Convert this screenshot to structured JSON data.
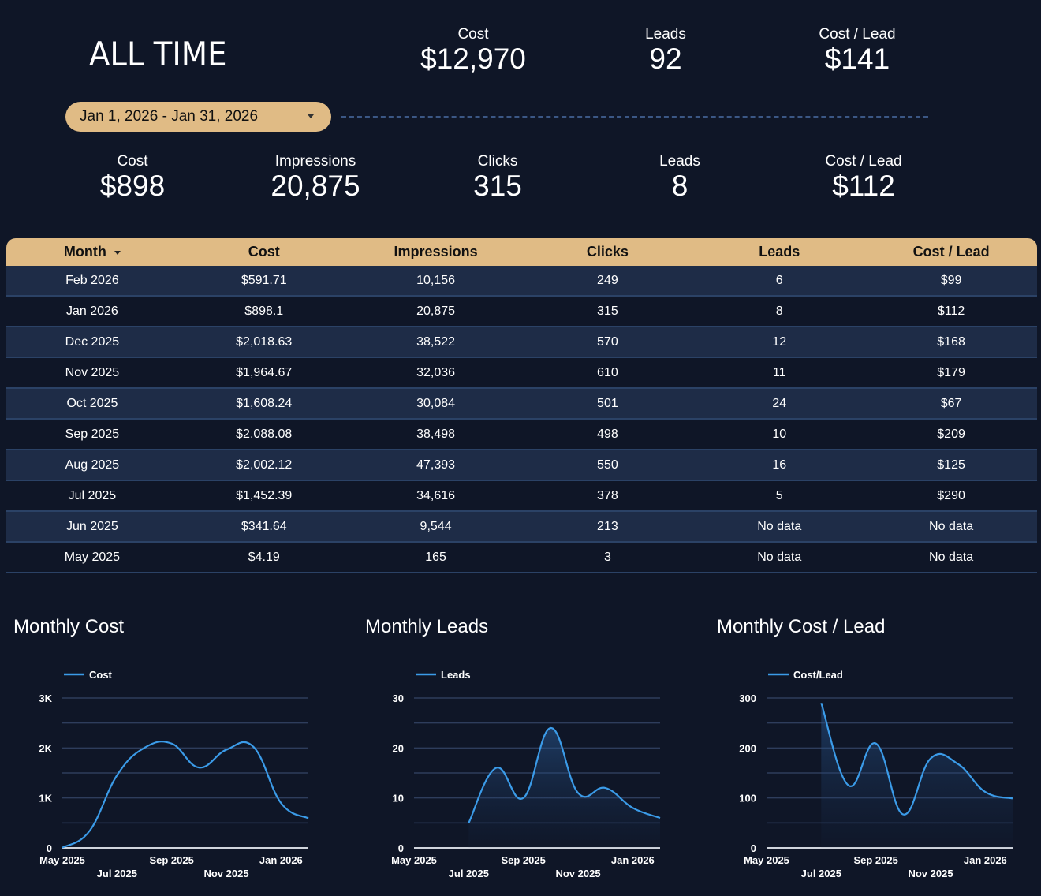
{
  "all_time": {
    "title": "ALL TIME",
    "kpis": [
      {
        "label": "Cost",
        "value": "$12,970"
      },
      {
        "label": "Leads",
        "value": "92"
      },
      {
        "label": "Cost / Lead",
        "value": "$141"
      }
    ]
  },
  "date_range": {
    "value": "Jan 1, 2026 - Jan 31, 2026"
  },
  "period": {
    "kpis": [
      {
        "label": "Cost",
        "value": "$898"
      },
      {
        "label": "Impressions",
        "value": "20,875"
      },
      {
        "label": "Clicks",
        "value": "315"
      },
      {
        "label": "Leads",
        "value": "8"
      },
      {
        "label": "Cost / Lead",
        "value": "$112"
      }
    ]
  },
  "table": {
    "columns": [
      "Month",
      "Cost",
      "Impressions",
      "Clicks",
      "Leads",
      "Cost / Lead"
    ],
    "rows": [
      [
        "Feb 2026",
        "$591.71",
        "10,156",
        "249",
        "6",
        "$99"
      ],
      [
        "Jan 2026",
        "$898.1",
        "20,875",
        "315",
        "8",
        "$112"
      ],
      [
        "Dec 2025",
        "$2,018.63",
        "38,522",
        "570",
        "12",
        "$168"
      ],
      [
        "Nov 2025",
        "$1,964.67",
        "32,036",
        "610",
        "11",
        "$179"
      ],
      [
        "Oct 2025",
        "$1,608.24",
        "30,084",
        "501",
        "24",
        "$67"
      ],
      [
        "Sep 2025",
        "$2,088.08",
        "38,498",
        "498",
        "10",
        "$209"
      ],
      [
        "Aug 2025",
        "$2,002.12",
        "47,393",
        "550",
        "16",
        "$125"
      ],
      [
        "Jul 2025",
        "$1,452.39",
        "34,616",
        "378",
        "5",
        "$290"
      ],
      [
        "Jun 2025",
        "$341.64",
        "9,544",
        "213",
        "No data",
        "No data"
      ],
      [
        "May 2025",
        "$4.19",
        "165",
        "3",
        "No data",
        "No data"
      ]
    ]
  },
  "colors": {
    "background": "#0f1627",
    "accent_gold": "#e0bb85",
    "row_alt": "#1e2c47",
    "line_blue": "#3b9be8",
    "grid": "#2e3d5c"
  },
  "chart_data": [
    {
      "type": "line",
      "title": "Monthly Cost",
      "legend": [
        "Cost"
      ],
      "legend_position": "top-left",
      "x": [
        "May 2025",
        "Jun 2025",
        "Jul 2025",
        "Aug 2025",
        "Sep 2025",
        "Oct 2025",
        "Nov 2025",
        "Dec 2025",
        "Jan 2026",
        "Feb 2026"
      ],
      "x_tick_labels": [
        "May 2025",
        "Jul 2025",
        "Sep 2025",
        "Nov 2025",
        "Jan 2026"
      ],
      "y_tick_labels": [
        "0",
        "1K",
        "2K",
        "3K"
      ],
      "ylim": [
        0,
        3000
      ],
      "grid": true,
      "area_fill": false,
      "series": [
        {
          "name": "Cost",
          "values": [
            4.19,
            341.64,
            1452.39,
            2002.12,
            2088.08,
            1608.24,
            1964.67,
            2018.63,
            898.1,
            591.71
          ]
        }
      ]
    },
    {
      "type": "area",
      "title": "Monthly Leads",
      "legend": [
        "Leads"
      ],
      "legend_position": "top-left",
      "x": [
        "May 2025",
        "Jun 2025",
        "Jul 2025",
        "Aug 2025",
        "Sep 2025",
        "Oct 2025",
        "Nov 2025",
        "Dec 2025",
        "Jan 2026",
        "Feb 2026"
      ],
      "x_tick_labels": [
        "May 2025",
        "Jul 2025",
        "Sep 2025",
        "Nov 2025",
        "Jan 2026"
      ],
      "y_tick_labels": [
        "0",
        "10",
        "20",
        "30"
      ],
      "ylim": [
        0,
        30
      ],
      "grid": true,
      "area_fill": true,
      "series": [
        {
          "name": "Leads",
          "values": [
            null,
            null,
            5,
            16,
            10,
            24,
            11,
            12,
            8,
            6
          ]
        }
      ]
    },
    {
      "type": "area",
      "title": "Monthly Cost / Lead",
      "legend": [
        "Cost/Lead"
      ],
      "legend_position": "top-left",
      "x": [
        "May 2025",
        "Jun 2025",
        "Jul 2025",
        "Aug 2025",
        "Sep 2025",
        "Oct 2025",
        "Nov 2025",
        "Dec 2025",
        "Jan 2026",
        "Feb 2026"
      ],
      "x_tick_labels": [
        "May 2025",
        "Jul 2025",
        "Sep 2025",
        "Nov 2025",
        "Jan 2026"
      ],
      "y_tick_labels": [
        "0",
        "100",
        "200",
        "300"
      ],
      "ylim": [
        0,
        300
      ],
      "grid": true,
      "area_fill": true,
      "series": [
        {
          "name": "Cost/Lead",
          "values": [
            null,
            null,
            290,
            125,
            209,
            67,
            179,
            168,
            112,
            99
          ]
        }
      ]
    }
  ]
}
